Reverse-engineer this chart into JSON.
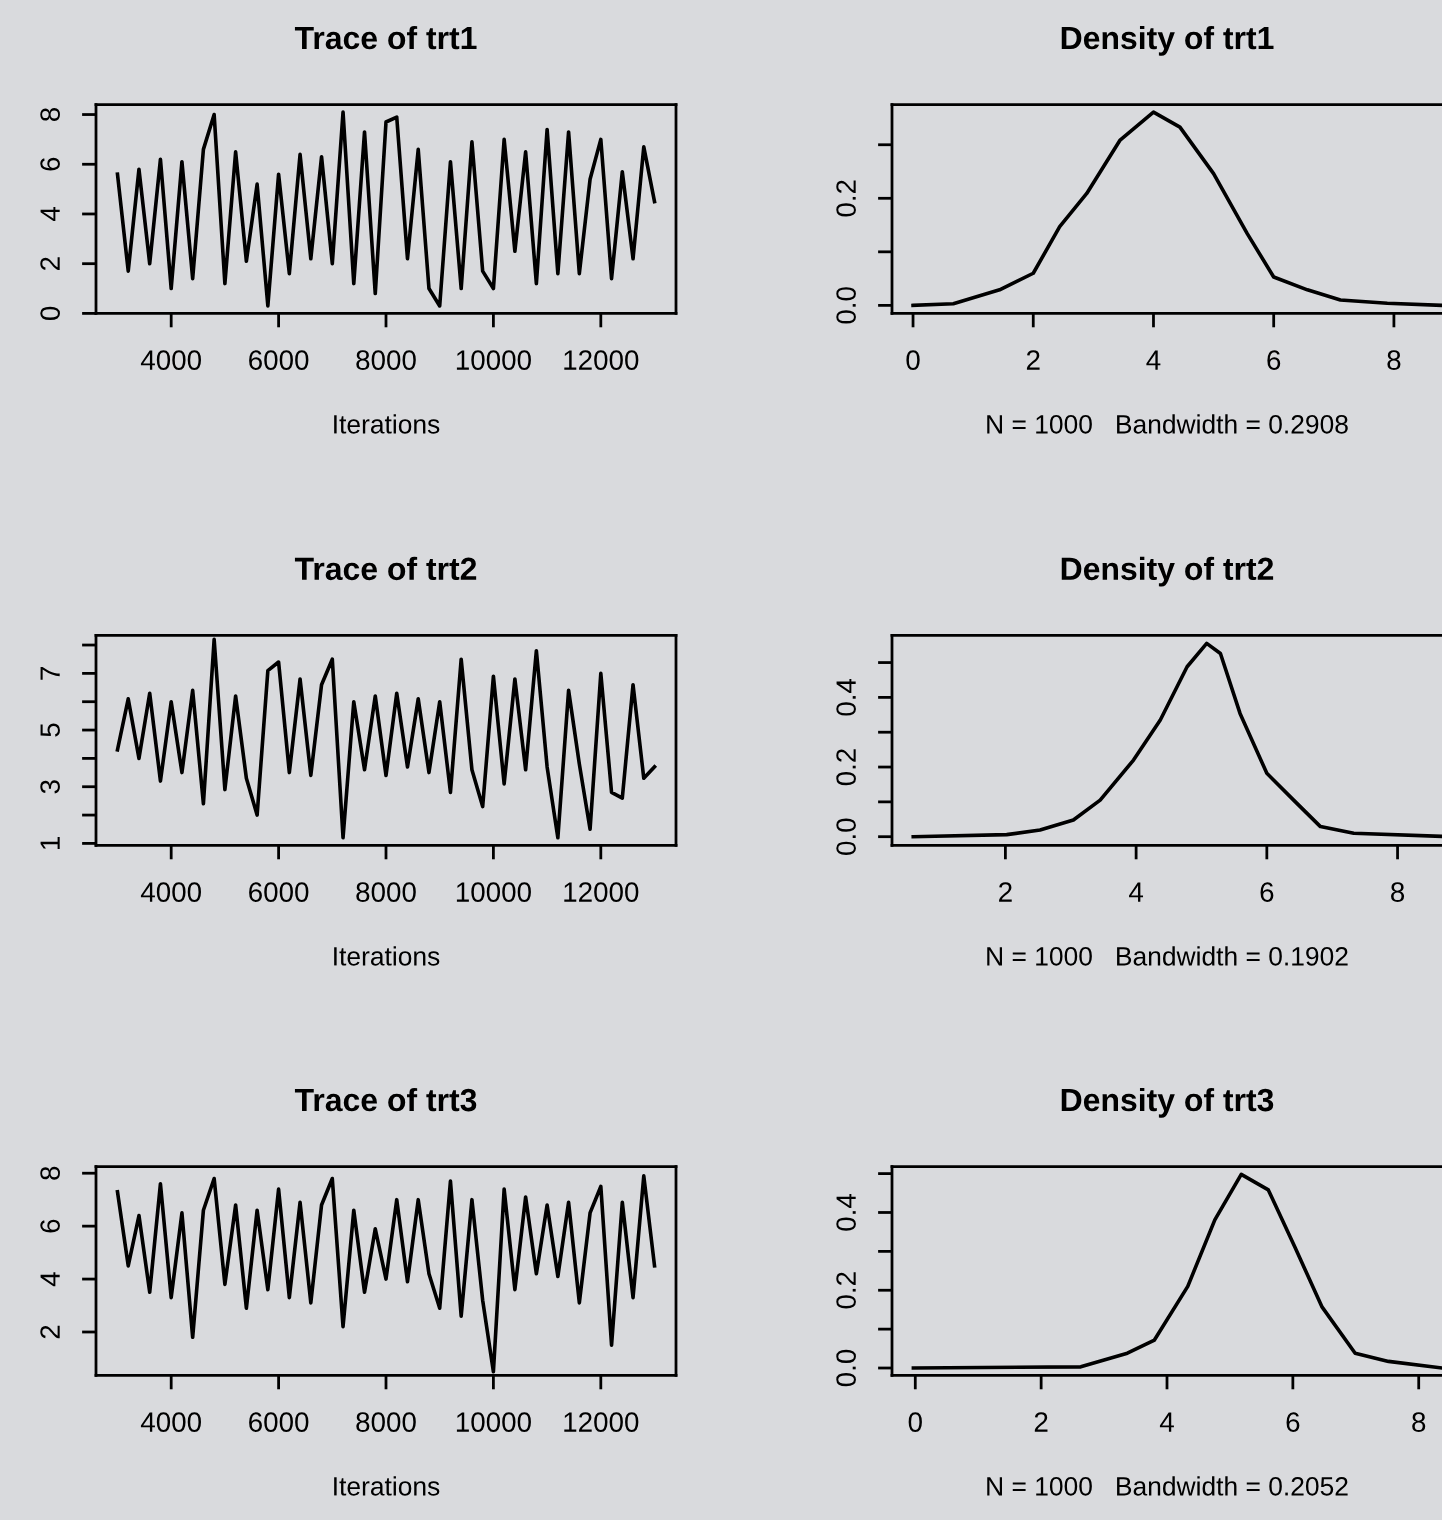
{
  "chart_data": [
    {
      "type": "line",
      "title": "Trace of trt1",
      "xlabel": "Iterations",
      "xlim": [
        2600,
        13400
      ],
      "ylim": [
        0,
        8.4
      ],
      "xticks": [
        4000,
        6000,
        8000,
        10000,
        12000
      ],
      "yticks": [
        0,
        2,
        4,
        6,
        8
      ],
      "series": [
        {
          "color": "#000000",
          "x": [
            3000,
            3200,
            3400,
            3600,
            3800,
            4000,
            4200,
            4400,
            4600,
            4800,
            5000,
            5200,
            5400,
            5600,
            5800,
            6000,
            6200,
            6400,
            6600,
            6800,
            7000,
            7200,
            7400,
            7600,
            7800,
            8000,
            8200,
            8400,
            8600,
            8800,
            9000,
            9200,
            9400,
            9600,
            9800,
            10000,
            10200,
            10400,
            10600,
            10800,
            11000,
            11200,
            11400,
            11600,
            11800,
            12000,
            12200,
            12400,
            12600,
            12800,
            13000
          ],
          "values": [
            5.6,
            1.7,
            5.8,
            2.0,
            6.2,
            1.0,
            6.1,
            1.4,
            6.6,
            8.0,
            1.2,
            6.5,
            2.1,
            5.2,
            0.3,
            5.6,
            1.6,
            6.4,
            2.2,
            6.3,
            2.0,
            8.1,
            1.2,
            7.3,
            0.8,
            7.7,
            7.9,
            2.2,
            6.6,
            1.0,
            0.3,
            6.1,
            1.0,
            6.9,
            1.7,
            1.0,
            7.0,
            2.5,
            6.5,
            1.2,
            7.4,
            1.6,
            7.3,
            1.6,
            5.4,
            7.0,
            1.4,
            5.7,
            2.2,
            6.7,
            4.5
          ]
        }
      ]
    },
    {
      "type": "line",
      "title": "Density of trt1",
      "xlabel": "N = 1000   Bandwidth = 0.2908",
      "xlim": [
        -0.35,
        8.8
      ],
      "ylim": [
        -0.015,
        0.375
      ],
      "xticks": [
        0,
        2,
        4,
        6,
        8
      ],
      "yticks": [
        {
          "value": 0,
          "label": "0.0"
        },
        {
          "value": 0.1,
          "label": null
        },
        0.2,
        {
          "value": 0.3,
          "label": null
        }
      ],
      "series": [
        {
          "color": "#000000",
          "x": [
            0,
            0.67,
            1.44,
            2.0,
            2.44,
            2.89,
            3.44,
            4.0,
            4.44,
            5.0,
            5.56,
            6.0,
            6.56,
            7.11,
            7.89,
            8.78
          ],
          "values": [
            0,
            0.003,
            0.029,
            0.06,
            0.147,
            0.209,
            0.308,
            0.361,
            0.333,
            0.246,
            0.134,
            0.053,
            0.029,
            0.01,
            0.004,
            0
          ]
        }
      ]
    },
    {
      "type": "line",
      "title": "Trace of trt2",
      "xlabel": "Iterations",
      "xlim": [
        2600,
        13400
      ],
      "ylim": [
        0.93,
        8.34
      ],
      "xticks": [
        4000,
        6000,
        8000,
        10000,
        12000
      ],
      "yticks": [
        1,
        {
          "value": 2,
          "label": null
        },
        3,
        {
          "value": 4,
          "label": null
        },
        5,
        {
          "value": 6,
          "label": null
        },
        7,
        {
          "value": 8,
          "label": null
        }
      ],
      "series": [
        {
          "color": "#000000",
          "x": [
            3000,
            3200,
            3400,
            3600,
            3800,
            4000,
            4200,
            4400,
            4600,
            4800,
            5000,
            5200,
            5400,
            5600,
            5800,
            6000,
            6200,
            6400,
            6600,
            6800,
            7000,
            7200,
            7400,
            7600,
            7800,
            8000,
            8200,
            8400,
            8600,
            8800,
            9000,
            9200,
            9400,
            9600,
            9800,
            10000,
            10200,
            10400,
            10600,
            10800,
            11000,
            11200,
            11400,
            11600,
            11800,
            12000,
            12200,
            12400,
            12600,
            12800,
            13000
          ],
          "values": [
            4.3,
            6.1,
            4.0,
            6.3,
            3.2,
            6.0,
            3.5,
            6.4,
            2.4,
            8.2,
            2.9,
            6.2,
            3.3,
            2.0,
            7.1,
            7.4,
            3.5,
            6.8,
            3.4,
            6.6,
            7.5,
            1.2,
            6.0,
            3.6,
            6.2,
            3.4,
            6.3,
            3.7,
            6.1,
            3.5,
            6.0,
            2.8,
            7.5,
            3.6,
            2.3,
            6.9,
            3.1,
            6.8,
            3.6,
            7.8,
            3.7,
            1.2,
            6.4,
            3.8,
            1.5,
            7.0,
            2.8,
            2.6,
            6.6,
            3.3,
            3.7
          ]
        }
      ]
    },
    {
      "type": "line",
      "title": "Density of trt2",
      "xlabel": "N = 1000   Bandwidth = 0.1902",
      "xlim": [
        0.265,
        8.68
      ],
      "ylim": [
        -0.025,
        0.578
      ],
      "xticks": [
        2,
        4,
        6,
        8
      ],
      "yticks": [
        {
          "value": 0,
          "label": "0.0"
        },
        {
          "value": 0.1,
          "label": null
        },
        0.2,
        {
          "value": 0.3,
          "label": null
        },
        0.4,
        {
          "value": 0.5,
          "label": null
        }
      ],
      "series": [
        {
          "color": "#000000",
          "x": [
            0.59,
            2.02,
            2.53,
            3.04,
            3.45,
            3.96,
            4.37,
            4.78,
            5.08,
            5.29,
            5.59,
            6.0,
            6.41,
            6.82,
            7.33,
            8.68
          ],
          "values": [
            0,
            0.006,
            0.019,
            0.048,
            0.105,
            0.22,
            0.335,
            0.488,
            0.555,
            0.526,
            0.354,
            0.182,
            0.105,
            0.029,
            0.01,
            0.001
          ]
        }
      ]
    },
    {
      "type": "line",
      "title": "Trace of trt3",
      "xlabel": "Iterations",
      "xlim": [
        2600,
        13400
      ],
      "ylim": [
        0.36,
        8.25
      ],
      "xticks": [
        4000,
        6000,
        8000,
        10000,
        12000
      ],
      "yticks": [
        2,
        4,
        6,
        8
      ],
      "series": [
        {
          "color": "#000000",
          "x": [
            3000,
            3200,
            3400,
            3600,
            3800,
            4000,
            4200,
            4400,
            4600,
            4800,
            5000,
            5200,
            5400,
            5600,
            5800,
            6000,
            6200,
            6400,
            6600,
            6800,
            7000,
            7200,
            7400,
            7600,
            7800,
            8000,
            8200,
            8400,
            8600,
            8800,
            9000,
            9200,
            9400,
            9600,
            9800,
            10000,
            10200,
            10400,
            10600,
            10800,
            11000,
            11200,
            11400,
            11600,
            11800,
            12000,
            12200,
            12400,
            12600,
            12800,
            13000
          ],
          "values": [
            7.3,
            4.5,
            6.4,
            3.5,
            7.6,
            3.3,
            6.5,
            1.8,
            6.6,
            7.8,
            3.8,
            6.8,
            2.9,
            6.6,
            3.6,
            7.4,
            3.3,
            6.9,
            3.1,
            6.8,
            7.8,
            2.2,
            6.6,
            3.5,
            5.9,
            4.0,
            7.0,
            3.9,
            7.0,
            4.2,
            2.9,
            7.7,
            2.6,
            7.0,
            3.2,
            0.5,
            7.4,
            3.6,
            7.1,
            4.2,
            6.8,
            4.1,
            6.9,
            3.1,
            6.5,
            7.5,
            1.5,
            6.9,
            3.3,
            7.9,
            4.5
          ]
        }
      ]
    },
    {
      "type": "line",
      "title": "Density of trt3",
      "xlabel": "N = 1000   Bandwidth = 0.2052",
      "xlim": [
        -0.37,
        8.37
      ],
      "ylim": [
        -0.019,
        0.518
      ],
      "xticks": [
        0,
        2,
        4,
        6,
        8
      ],
      "yticks": [
        {
          "value": 0,
          "label": "0.0"
        },
        {
          "value": 0.1,
          "label": null
        },
        0.2,
        {
          "value": 0.3,
          "label": null
        },
        0.4,
        {
          "value": 0.5,
          "label": null
        }
      ],
      "series": [
        {
          "color": "#000000",
          "x": [
            -0.03,
            2.63,
            3.37,
            3.8,
            4.33,
            4.76,
            5.18,
            5.61,
            6.03,
            6.46,
            6.99,
            7.52,
            8.37
          ],
          "values": [
            0,
            0.003,
            0.038,
            0.072,
            0.21,
            0.381,
            0.498,
            0.458,
            0.312,
            0.158,
            0.038,
            0.017,
            0
          ]
        }
      ]
    }
  ]
}
